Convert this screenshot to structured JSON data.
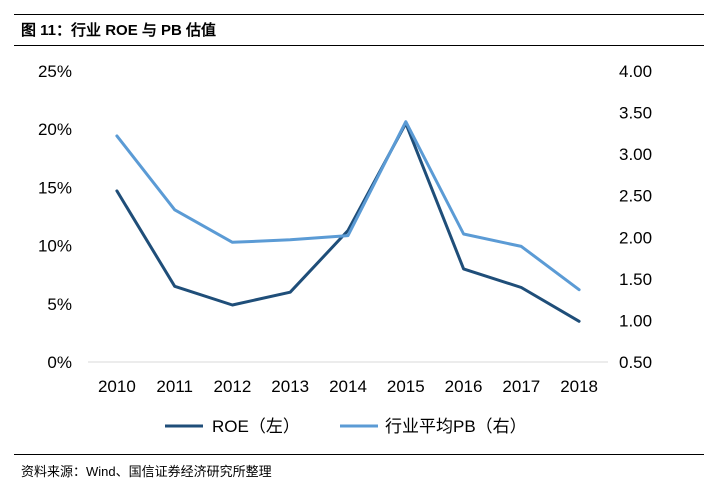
{
  "figure": {
    "title": "图 11：行业 ROE 与 PB 估值",
    "source": "资料来源：Wind、国信证券经济研究所整理"
  },
  "chart_data": {
    "type": "line",
    "title": "图 11：行业 ROE 与 PB 估值",
    "x": [
      "2010",
      "2011",
      "2012",
      "2013",
      "2014",
      "2015",
      "2016",
      "2017",
      "2018"
    ],
    "y_left": {
      "ylim": [
        0,
        25
      ],
      "ticks": [
        "0%",
        "5%",
        "10%",
        "15%",
        "20%",
        "25%"
      ]
    },
    "y_right": {
      "ylim": [
        0.5,
        4.0
      ],
      "ticks": [
        "0.50",
        "1.00",
        "1.50",
        "2.00",
        "2.50",
        "3.00",
        "3.50",
        "4.00"
      ]
    },
    "series": [
      {
        "name": "ROE（左）",
        "axis": "left",
        "color": "#1f4e79",
        "values": [
          14.7,
          6.5,
          4.9,
          6.0,
          11.3,
          20.5,
          8.0,
          6.4,
          3.5
        ]
      },
      {
        "name": "行业平均PB（右）",
        "axis": "right",
        "color": "#5b9bd5",
        "values": [
          3.22,
          2.33,
          1.94,
          1.97,
          2.02,
          3.39,
          2.04,
          1.89,
          1.37
        ]
      }
    ],
    "grid": false,
    "legend": "bottom"
  }
}
